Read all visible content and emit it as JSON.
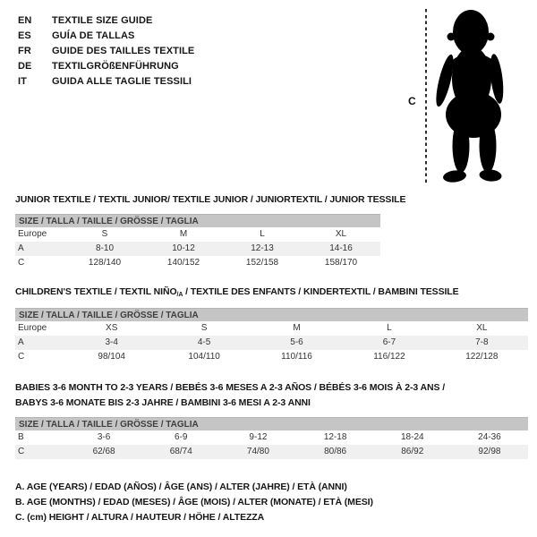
{
  "colors": {
    "background": "#ffffff",
    "header_bar_bg": "#c5c5c5",
    "header_bar_text": "#3f3f3f",
    "shaded_row_bg": "#f0f0f0",
    "table_text": "#333333",
    "title_text": "#161616",
    "silhouette": "#000000"
  },
  "header": {
    "languages": [
      {
        "code": "EN",
        "title": "TEXTILE SIZE GUIDE"
      },
      {
        "code": "ES",
        "title": "GUÍA DE TALLAS"
      },
      {
        "code": "FR",
        "title": "GUIDE DES TAILLES TEXTILE"
      },
      {
        "code": "DE",
        "title": "TEXTILGRÖßENFÜHRUNG"
      },
      {
        "code": "IT",
        "title": "GUIDA ALLE TAGLIE TESSILI"
      }
    ],
    "figure": {
      "icon": "baby-silhouette-icon",
      "measure_label": "C"
    }
  },
  "tables": [
    {
      "title": "JUNIOR TEXTILE / TEXTIL JUNIOR/ TEXTILE JUNIOR / JUNIORTEXTIL / JUNIOR TESSILE",
      "size_header": "SIZE / TALLA / TAILLE / GRÖSSE / TAGLIA",
      "rows": [
        {
          "label": "Europe",
          "shaded": false,
          "values": [
            "S",
            "M",
            "L",
            "XL"
          ]
        },
        {
          "label": "A",
          "shaded": true,
          "values": [
            "8-10",
            "10-12",
            "12-13",
            "14-16"
          ]
        },
        {
          "label": "C",
          "shaded": false,
          "values": [
            "128/140",
            "140/152",
            "152/158",
            "158/170"
          ]
        }
      ]
    },
    {
      "title_pre": "CHILDREN'S TEXTILE / TEXTIL NIÑO",
      "title_sub": "/A",
      "title_post": " / TEXTILE DES ENFANTS / KINDERTEXTIL / BAMBINI TESSILE",
      "size_header": "SIZE / TALLA / TAILLE / GRÖSSE / TAGLIA",
      "rows": [
        {
          "label": "Europe",
          "shaded": false,
          "values": [
            "XS",
            "S",
            "M",
            "L",
            "XL"
          ]
        },
        {
          "label": "A",
          "shaded": true,
          "values": [
            "3-4",
            "4-5",
            "5-6",
            "6-7",
            "7-8"
          ]
        },
        {
          "label": "C",
          "shaded": false,
          "values": [
            "98/104",
            "104/110",
            "110/116",
            "116/122",
            "122/128"
          ]
        }
      ]
    },
    {
      "title_lines": [
        "BABIES 3-6 MONTH TO 2-3 YEARS / BEBÉS 3-6 MESES A 2-3 AÑOS / BÉBÉS 3-6 MOIS À 2-3 ANS /",
        "BABYS 3-6 MONATE BIS 2-3 JAHRE / BAMBINI 3-6 MESI A 2-3 ANNI"
      ],
      "size_header": "SIZE / TALLA / TAILLE / GRÖSSE / TAGLIA",
      "rows": [
        {
          "label": "B",
          "shaded": false,
          "values": [
            "3-6",
            "6-9",
            "9-12",
            "12-18",
            "18-24",
            "24-36"
          ]
        },
        {
          "label": "C",
          "shaded": true,
          "values": [
            "62/68",
            "68/74",
            "74/80",
            "80/86",
            "86/92",
            "92/98"
          ]
        }
      ]
    }
  ],
  "legend": [
    "A. AGE (YEARS) / EDAD (AÑOS) / ÂGE (ANS) / ALTER (JAHRE) / ETÀ (ANNI)",
    "B. AGE (MONTHS) / EDAD (MESES) / ÂGE (MOIS) / ALTER (MONATE) / ETÀ (MESI)",
    "C. (cm) HEIGHT / ALTURA / HAUTEUR / HÖHE / ALTEZZA"
  ]
}
